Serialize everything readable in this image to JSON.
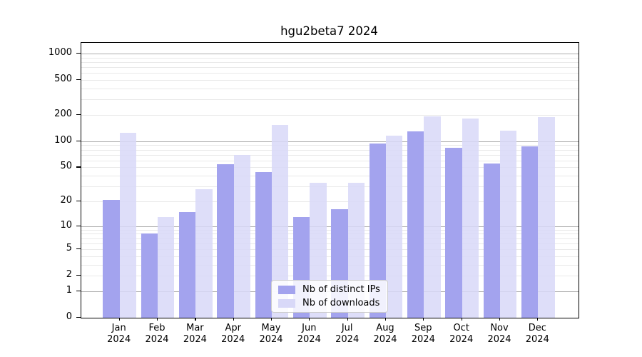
{
  "chart_data": {
    "type": "bar",
    "title": "hgu2beta7 2024",
    "categories": [
      "Jan",
      "Feb",
      "Mar",
      "Apr",
      "May",
      "Jun",
      "Jul",
      "Aug",
      "Sep",
      "Oct",
      "Nov",
      "Dec"
    ],
    "x_tick_year": "2024",
    "series": [
      {
        "name": "Nb of distinct IPs",
        "color": "#a3a3ee",
        "values": [
          21,
          8,
          15,
          54,
          44,
          13,
          16,
          95,
          129,
          84,
          56,
          88
        ]
      },
      {
        "name": "Nb of downloads",
        "color": "#d8d8f8",
        "values": [
          125,
          13,
          28,
          70,
          155,
          33,
          33,
          116,
          192,
          183,
          132,
          188
        ]
      }
    ],
    "y_scale": "log1p",
    "y_ticks": [
      0,
      1,
      2,
      5,
      10,
      20,
      50,
      100,
      200,
      500,
      1000
    ],
    "ylim": [
      0,
      1300
    ],
    "grid": "horizontal",
    "legend_position": "lower center",
    "colors": {
      "major_grid": "#adadad",
      "minor_grid": "#e9e9e9",
      "axis": "#000000",
      "background": "#ffffff"
    }
  }
}
